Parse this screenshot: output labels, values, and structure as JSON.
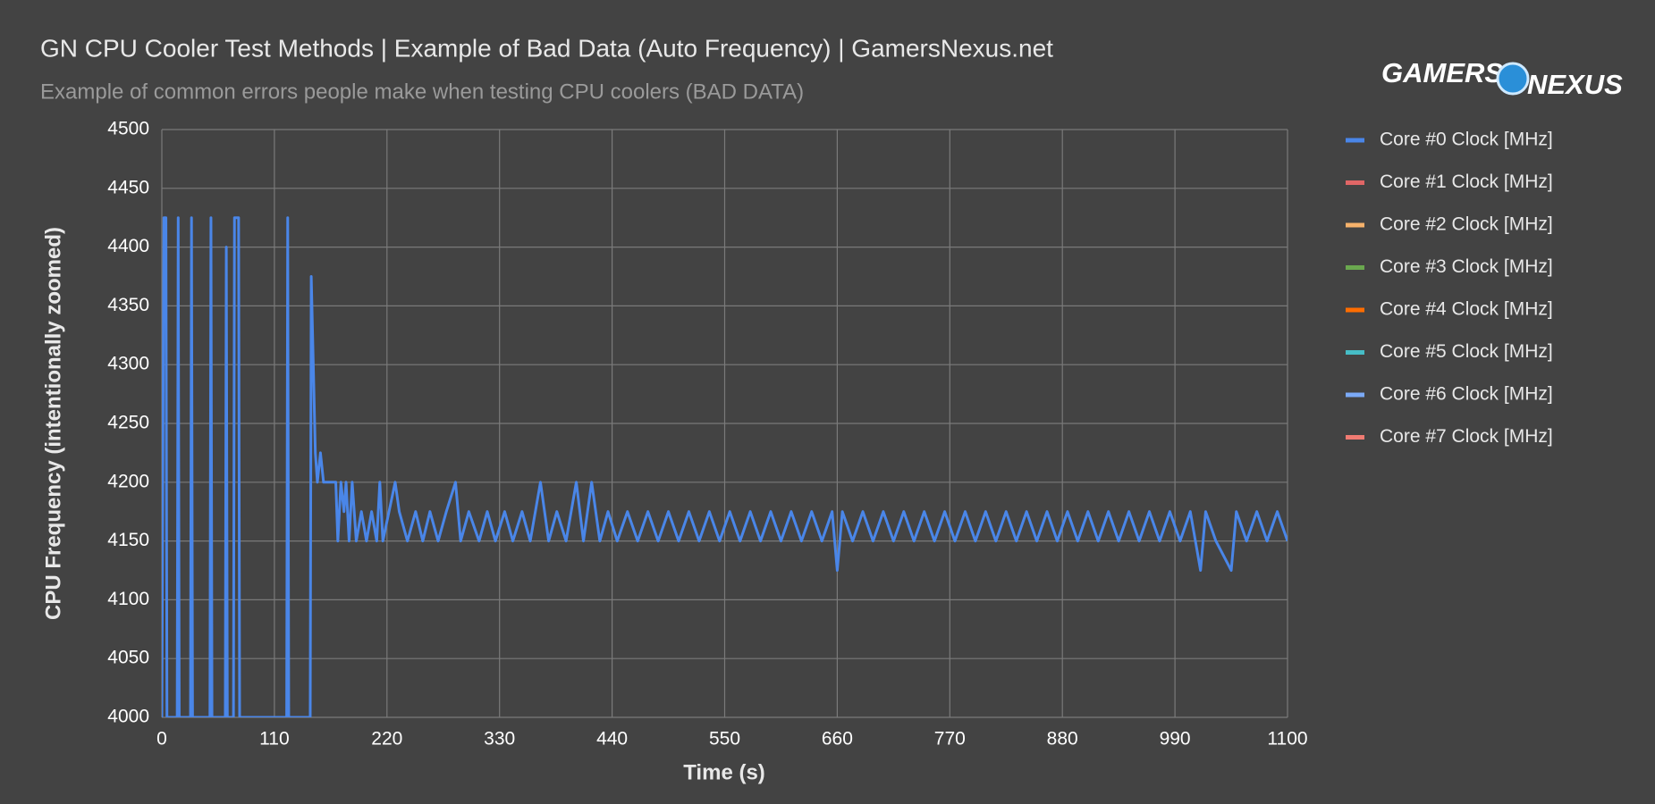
{
  "chart_data": {
    "type": "line",
    "title": "GN CPU Cooler Test Methods | Example of Bad Data (Auto Frequency) | GamersNexus.net",
    "subtitle": "Example of common errors people make when testing CPU coolers (BAD DATA)",
    "logo": [
      "GAMERS",
      "NEXUS"
    ],
    "x_label": "Time (s)",
    "y_label": "CPU Frequency (intentionally zoomed)",
    "xlim": [
      0,
      1100
    ],
    "xticks": [
      0,
      110,
      220,
      330,
      440,
      550,
      660,
      770,
      880,
      990,
      1100
    ],
    "ylim": [
      4000,
      4500
    ],
    "yticks": [
      4000,
      4050,
      4100,
      4150,
      4200,
      4250,
      4300,
      4350,
      4400,
      4450,
      4500
    ],
    "grid": true,
    "legend": "right",
    "x": [
      0,
      2,
      4,
      5,
      15,
      16,
      17,
      28,
      29,
      30,
      47,
      48,
      49,
      62,
      63,
      64,
      70,
      71,
      75,
      76,
      122,
      123,
      124,
      145,
      146,
      150,
      152,
      155,
      158,
      170,
      172,
      175,
      178,
      180,
      183,
      186,
      190,
      195,
      200,
      205,
      210,
      213,
      216,
      222,
      228,
      232,
      240,
      248,
      255,
      262,
      270,
      278,
      287,
      292,
      300,
      310,
      318,
      326,
      335,
      343,
      352,
      360,
      370,
      378,
      386,
      395,
      405,
      412,
      420,
      428,
      436,
      445,
      455,
      465,
      475,
      485,
      495,
      505,
      515,
      525,
      535,
      545,
      555,
      565,
      575,
      585,
      595,
      605,
      615,
      625,
      635,
      645,
      655,
      660,
      665,
      675,
      685,
      695,
      705,
      715,
      725,
      735,
      745,
      755,
      765,
      775,
      785,
      795,
      805,
      815,
      825,
      835,
      845,
      855,
      865,
      875,
      885,
      895,
      905,
      915,
      925,
      935,
      945,
      955,
      965,
      975,
      985,
      995,
      1005,
      1015,
      1020,
      1030,
      1045,
      1050,
      1060,
      1070,
      1080,
      1090,
      1100
    ],
    "series": [
      {
        "name": "Core #0 Clock [MHz]",
        "color": "#4a86e8",
        "values": [
          4000,
          4425,
          4425,
          4000,
          4000,
          4425,
          4000,
          4000,
          4425,
          4000,
          4000,
          4425,
          4000,
          4000,
          4400,
          4000,
          4000,
          4425,
          4425,
          4000,
          4000,
          4425,
          4000,
          4000,
          4375,
          4225,
          4200,
          4225,
          4200,
          4200,
          4150,
          4200,
          4175,
          4200,
          4150,
          4200,
          4150,
          4175,
          4150,
          4175,
          4150,
          4200,
          4150,
          4175,
          4200,
          4175,
          4150,
          4175,
          4150,
          4175,
          4150,
          4175,
          4200,
          4150,
          4175,
          4150,
          4175,
          4150,
          4175,
          4150,
          4175,
          4150,
          4200,
          4150,
          4175,
          4150,
          4200,
          4150,
          4200,
          4150,
          4175,
          4150,
          4175,
          4150,
          4175,
          4150,
          4175,
          4150,
          4175,
          4150,
          4175,
          4150,
          4175,
          4150,
          4175,
          4150,
          4175,
          4150,
          4175,
          4150,
          4175,
          4150,
          4175,
          4125,
          4175,
          4150,
          4175,
          4150,
          4175,
          4150,
          4175,
          4150,
          4175,
          4150,
          4175,
          4150,
          4175,
          4150,
          4175,
          4150,
          4175,
          4150,
          4175,
          4150,
          4175,
          4150,
          4175,
          4150,
          4175,
          4150,
          4175,
          4150,
          4175,
          4150,
          4175,
          4150,
          4175,
          4150,
          4175,
          4125,
          4175,
          4150,
          4125,
          4175,
          4150,
          4175,
          4150,
          4175,
          4150
        ]
      },
      {
        "name": "Core #1 Clock [MHz]",
        "color": "#e06666"
      },
      {
        "name": "Core #2 Clock [MHz]",
        "color": "#f6b26b"
      },
      {
        "name": "Core #3 Clock [MHz]",
        "color": "#6aa84f"
      },
      {
        "name": "Core #4 Clock [MHz]",
        "color": "#ff6d01"
      },
      {
        "name": "Core #5 Clock [MHz]",
        "color": "#46bdc6"
      },
      {
        "name": "Core #6 Clock [MHz]",
        "color": "#7baaf7"
      },
      {
        "name": "Core #7 Clock [MHz]",
        "color": "#f07b72"
      }
    ]
  }
}
